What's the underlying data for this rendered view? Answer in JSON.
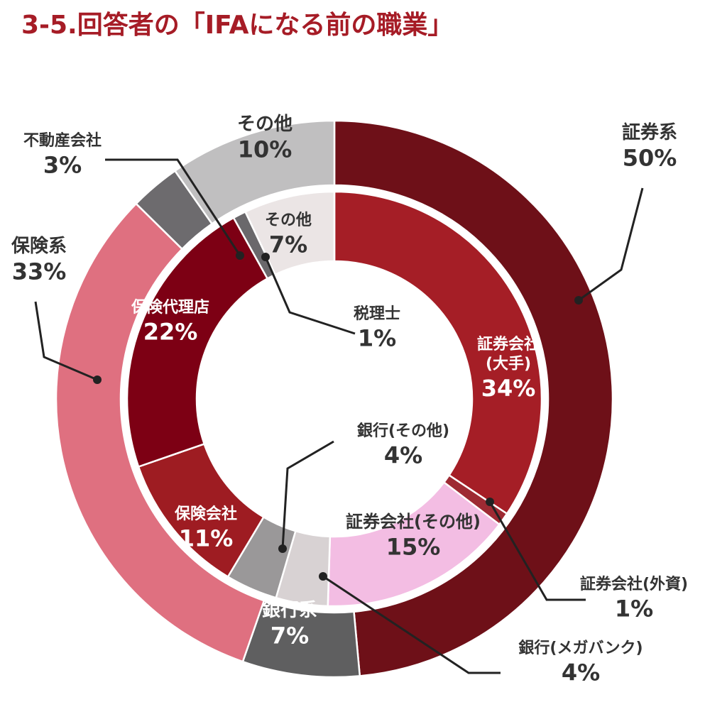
{
  "title": "3-5.回答者の「IFAになる前の職業」",
  "colors": {
    "title": "#a61c26",
    "line": "#222222"
  },
  "chart_data": [
    {
      "type": "pie",
      "ring": "outer",
      "slices": [
        {
          "label": "証券系",
          "value": 50,
          "value_text": "50%",
          "color": "#6e1018"
        },
        {
          "label": "銀行系",
          "value": 7,
          "value_text": "7%",
          "color": "#5f5f60"
        },
        {
          "label": "保険系",
          "value": 33,
          "value_text": "33%",
          "color": "#df7080"
        },
        {
          "label": "不動産会社",
          "value": 3,
          "value_text": "3%",
          "color": "#6d6b6e"
        },
        {
          "label": "その他",
          "value": 10,
          "value_text": "10%",
          "color": "#c0bfc0"
        }
      ]
    },
    {
      "type": "pie",
      "ring": "inner",
      "slices": [
        {
          "label": "証券会社\n(大手)",
          "value": 34,
          "value_text": "34%",
          "color": "#a51e26"
        },
        {
          "label": "証券会社(外資)",
          "value": 1,
          "value_text": "1%",
          "color": "#9e2a33"
        },
        {
          "label": "証券会社(その他)",
          "value": 15,
          "value_text": "15%",
          "color": "#f3bde3"
        },
        {
          "label": "銀行(メガバンク)",
          "value": 4,
          "value_text": "4%",
          "color": "#d8d2d3"
        },
        {
          "label": "銀行(その他)",
          "value": 4,
          "value_text": "4%",
          "color": "#9a9899"
        },
        {
          "label": "保険会社",
          "value": 11,
          "value_text": "11%",
          "color": "#9e1c22"
        },
        {
          "label": "保険代理店",
          "value": 22,
          "value_text": "22%",
          "color": "#7d0014"
        },
        {
          "label": "税理士",
          "value": 1,
          "value_text": "1%",
          "color": "#6a686b"
        },
        {
          "label": "その他",
          "value": 7,
          "value_text": "7%",
          "color": "#ebe5e5"
        }
      ]
    }
  ]
}
